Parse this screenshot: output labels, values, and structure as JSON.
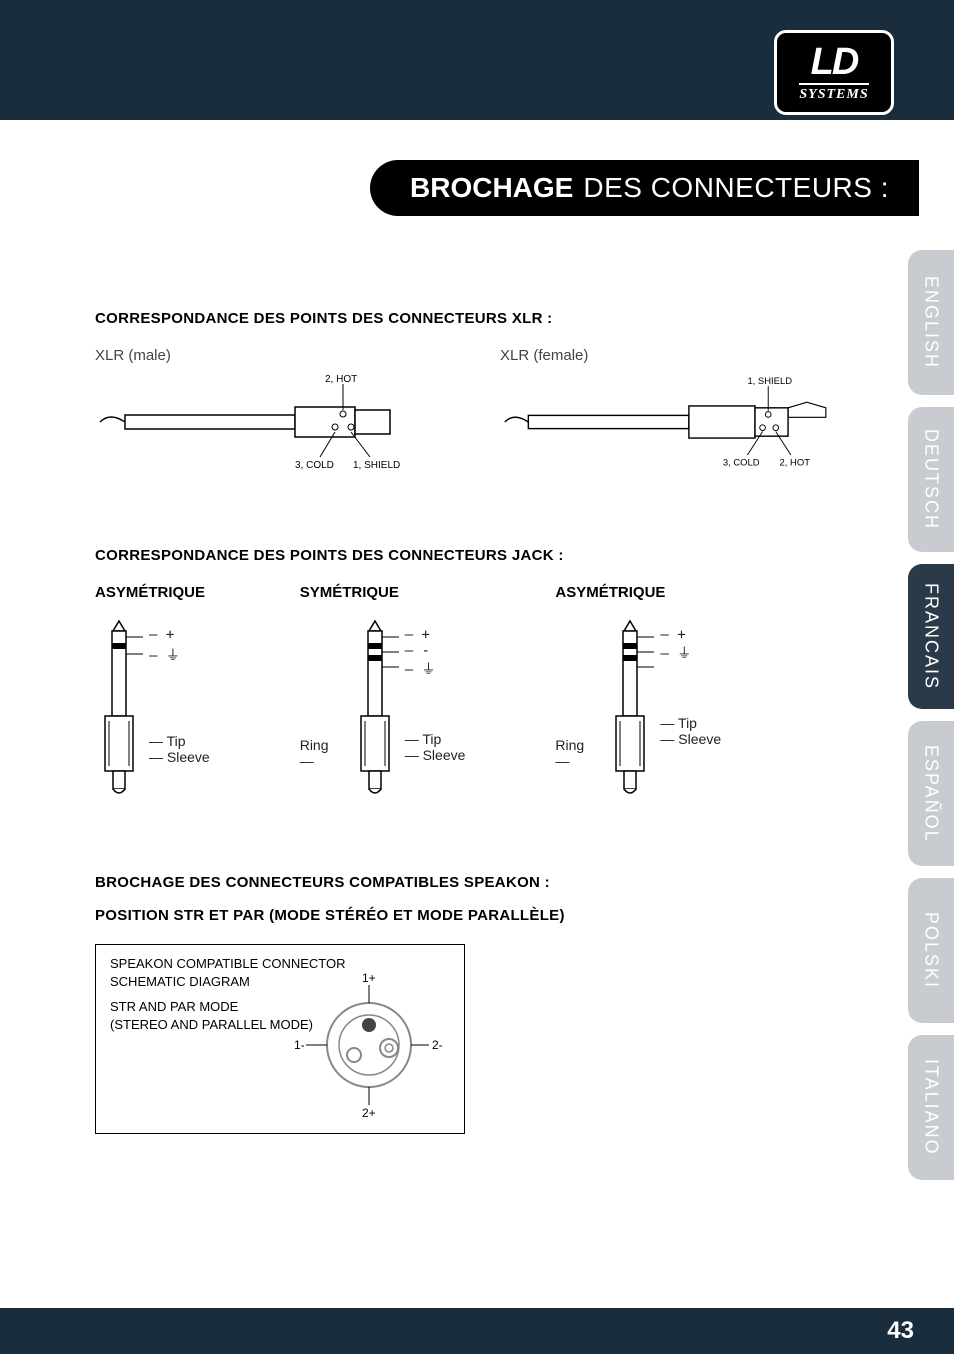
{
  "logo": {
    "main": "LD",
    "sub": "SYSTEMS"
  },
  "title": {
    "bold": "BROCHAGE",
    "thin": "DES CONNECTEURS :"
  },
  "lang_tabs": [
    {
      "label": "ENGLISH",
      "active": false
    },
    {
      "label": "DEUTSCH",
      "active": false
    },
    {
      "label": "FRANCAIS",
      "active": true
    },
    {
      "label": "ESPAÑOL",
      "active": false
    },
    {
      "label": "POLSKI",
      "active": false
    },
    {
      "label": "ITALIANO",
      "active": false
    }
  ],
  "sections": {
    "xlr": {
      "heading": "CORRESPONDANCE DES POINTS DES CONNECTEURS XLR :",
      "male": {
        "label": "XLR (male)",
        "pins": {
          "hot": "2, HOT",
          "cold": "3, COLD",
          "shield": "1, SHIELD"
        }
      },
      "female": {
        "label": "XLR (female)",
        "pins": {
          "hot": "2, HOT",
          "cold": "3, COLD",
          "shield": "1, SHIELD"
        }
      }
    },
    "jack": {
      "heading": "CORRESPONDANCE DES POINTS DES CONNECTEURS JACK :",
      "cols": [
        {
          "title": "ASYMÉTRIQUE",
          "type": "ts",
          "upper": [
            "+",
            "⏚"
          ],
          "lower_left": [],
          "lower_right": [
            "Tip",
            "Sleeve"
          ]
        },
        {
          "title": "SYMÉTRIQUE",
          "type": "trs",
          "upper": [
            "+",
            "-",
            "⏚"
          ],
          "lower_left": [
            "Ring"
          ],
          "lower_right": [
            "Tip",
            "Sleeve"
          ]
        },
        {
          "title": "ASYMÉTRIQUE",
          "type": "trs",
          "upper": [
            "+",
            "⏚"
          ],
          "lower_left": [
            "Ring"
          ],
          "lower_right": [
            "Tip",
            "Sleeve"
          ]
        }
      ]
    },
    "speakon": {
      "heading1": "BROCHAGE DES CONNECTEURS COMPATIBLES SPEAKON :",
      "heading2": "POSITION STR ET PAR (MODE STÉRÉO ET MODE PARALLÈLE)",
      "box": {
        "line1": "SPEAKON COMPATIBLE CONNECTOR",
        "line2": "SCHEMATIC DIAGRAM",
        "line3": "STR AND PAR MODE",
        "line4": "(STEREO AND PARALLEL MODE)",
        "pins": {
          "top": "1+",
          "right": "2-",
          "bottom": "2+",
          "left": "1-"
        }
      }
    }
  },
  "page_number": "43",
  "colors": {
    "banner": "#1a2d3d",
    "tab_inactive_bg": "#c8ccd0",
    "tab_active_bg": "#2b3a48",
    "text": "#000000",
    "light_text": "#444444"
  },
  "fonts": {
    "heading_weight": "bold",
    "heading_size_pt": 11,
    "body_size_pt": 11,
    "title_bold_size_pt": 21,
    "title_thin_size_pt": 21
  }
}
